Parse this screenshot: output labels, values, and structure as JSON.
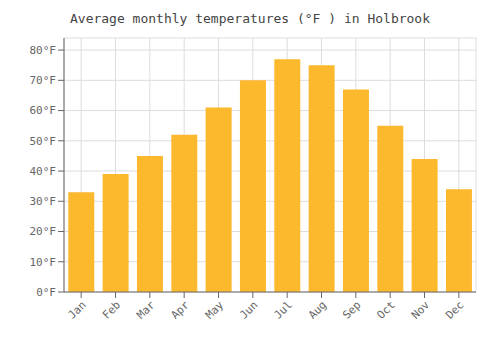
{
  "chart_data": {
    "type": "bar",
    "title": "Average monthly temperatures (°F ) in Holbrook",
    "categories": [
      "Jan",
      "Feb",
      "Mar",
      "Apr",
      "May",
      "Jun",
      "Jul",
      "Aug",
      "Sep",
      "Oct",
      "Nov",
      "Dec"
    ],
    "values": [
      33,
      39,
      45,
      52,
      61,
      70,
      77,
      75,
      67,
      55,
      44,
      34
    ],
    "color": "#FDB92E",
    "ylim": [
      0,
      84
    ],
    "yticks": [
      {
        "value": 0,
        "label": "0°F"
      },
      {
        "value": 10,
        "label": "10°F"
      },
      {
        "value": 20,
        "label": "20°F"
      },
      {
        "value": 30,
        "label": "30°F"
      },
      {
        "value": 40,
        "label": "40°F"
      },
      {
        "value": 50,
        "label": "50°F"
      },
      {
        "value": 60,
        "label": "60°F"
      },
      {
        "value": 70,
        "label": "70°F"
      },
      {
        "value": 80,
        "label": "80°F"
      }
    ],
    "grid": true
  }
}
